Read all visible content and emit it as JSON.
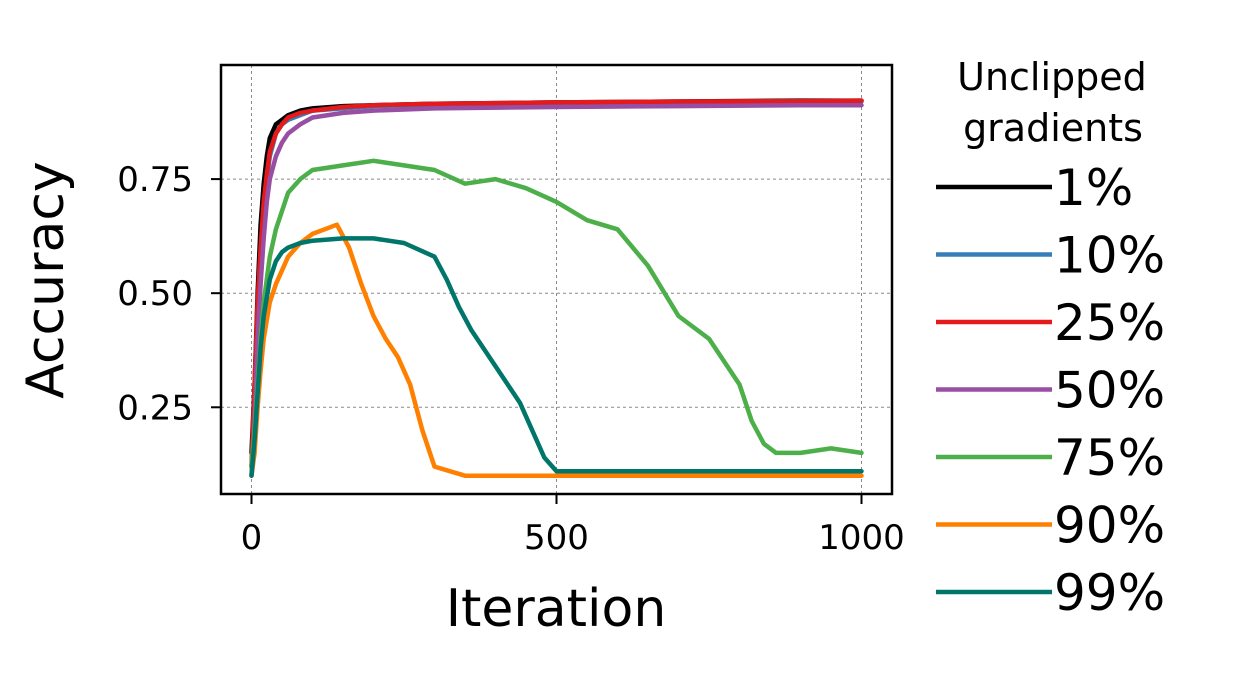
{
  "chart_data": {
    "type": "line",
    "xlabel": "Iteration",
    "ylabel": "Accuracy",
    "xlim": [
      -50,
      1050
    ],
    "ylim": [
      0.06,
      1.0
    ],
    "xticks": [
      0,
      500,
      1000
    ],
    "xtick_labels": [
      "0",
      "500",
      "1000"
    ],
    "yticks": [
      0.25,
      0.5,
      0.75
    ],
    "ytick_labels": [
      "0.25",
      "0.50",
      "0.75"
    ],
    "grid": true,
    "legend": {
      "title": "Unclipped\ngradients",
      "placement": "right-outside"
    },
    "series": [
      {
        "name": "1%",
        "color": "#000000",
        "x": [
          0,
          5,
          10,
          15,
          20,
          25,
          30,
          40,
          50,
          60,
          80,
          100,
          150,
          200,
          300,
          500,
          700,
          900,
          1000
        ],
        "y": [
          0.15,
          0.3,
          0.5,
          0.65,
          0.74,
          0.8,
          0.84,
          0.87,
          0.88,
          0.89,
          0.9,
          0.905,
          0.91,
          0.912,
          0.915,
          0.918,
          0.92,
          0.922,
          0.922
        ]
      },
      {
        "name": "10%",
        "color": "#377eb8",
        "x": [
          0,
          5,
          10,
          15,
          20,
          25,
          30,
          40,
          50,
          60,
          80,
          100,
          150,
          200,
          300,
          500,
          700,
          900,
          1000
        ],
        "y": [
          0.12,
          0.25,
          0.45,
          0.58,
          0.68,
          0.75,
          0.8,
          0.85,
          0.87,
          0.88,
          0.89,
          0.9,
          0.905,
          0.91,
          0.913,
          0.916,
          0.918,
          0.92,
          0.92
        ]
      },
      {
        "name": "25%",
        "color": "#e41a1c",
        "x": [
          0,
          5,
          10,
          15,
          20,
          25,
          30,
          40,
          50,
          60,
          80,
          100,
          150,
          200,
          300,
          500,
          700,
          900,
          1000
        ],
        "y": [
          0.12,
          0.3,
          0.48,
          0.6,
          0.7,
          0.76,
          0.81,
          0.85,
          0.87,
          0.885,
          0.895,
          0.9,
          0.908,
          0.912,
          0.915,
          0.918,
          0.92,
          0.921,
          0.922
        ]
      },
      {
        "name": "50%",
        "color": "#984ea3",
        "x": [
          0,
          5,
          10,
          15,
          20,
          25,
          30,
          40,
          50,
          60,
          80,
          100,
          150,
          200,
          300,
          500,
          700,
          900,
          1000
        ],
        "y": [
          0.1,
          0.22,
          0.4,
          0.52,
          0.62,
          0.7,
          0.75,
          0.8,
          0.83,
          0.85,
          0.87,
          0.885,
          0.895,
          0.9,
          0.905,
          0.908,
          0.91,
          0.912,
          0.912
        ]
      },
      {
        "name": "75%",
        "color": "#4daf4a",
        "x": [
          0,
          5,
          10,
          15,
          20,
          30,
          40,
          50,
          60,
          80,
          100,
          150,
          200,
          250,
          300,
          350,
          400,
          450,
          500,
          550,
          600,
          650,
          700,
          750,
          800,
          820,
          840,
          860,
          900,
          950,
          1000
        ],
        "y": [
          0.12,
          0.2,
          0.3,
          0.4,
          0.48,
          0.58,
          0.64,
          0.68,
          0.72,
          0.75,
          0.77,
          0.78,
          0.79,
          0.78,
          0.77,
          0.74,
          0.75,
          0.73,
          0.7,
          0.66,
          0.64,
          0.56,
          0.45,
          0.4,
          0.3,
          0.22,
          0.17,
          0.15,
          0.15,
          0.16,
          0.15
        ]
      },
      {
        "name": "90%",
        "color": "#ff7f00",
        "x": [
          0,
          5,
          10,
          15,
          20,
          30,
          40,
          50,
          60,
          80,
          100,
          120,
          140,
          160,
          180,
          200,
          220,
          240,
          260,
          280,
          300,
          350,
          400,
          500,
          600,
          700,
          800,
          900,
          1000
        ],
        "y": [
          0.1,
          0.15,
          0.25,
          0.33,
          0.4,
          0.48,
          0.52,
          0.55,
          0.58,
          0.61,
          0.63,
          0.64,
          0.65,
          0.6,
          0.52,
          0.45,
          0.4,
          0.36,
          0.3,
          0.2,
          0.12,
          0.1,
          0.1,
          0.1,
          0.1,
          0.1,
          0.1,
          0.1,
          0.1
        ]
      },
      {
        "name": "99%",
        "color": "#00766a",
        "x": [
          0,
          5,
          10,
          15,
          20,
          30,
          40,
          50,
          60,
          80,
          100,
          150,
          200,
          250,
          300,
          320,
          340,
          360,
          380,
          400,
          420,
          440,
          460,
          480,
          500,
          550,
          600,
          700,
          800,
          900,
          1000
        ],
        "y": [
          0.1,
          0.18,
          0.28,
          0.38,
          0.45,
          0.53,
          0.57,
          0.59,
          0.6,
          0.61,
          0.615,
          0.62,
          0.62,
          0.61,
          0.58,
          0.53,
          0.47,
          0.42,
          0.38,
          0.34,
          0.3,
          0.26,
          0.2,
          0.14,
          0.11,
          0.11,
          0.11,
          0.11,
          0.11,
          0.11,
          0.11
        ]
      }
    ]
  }
}
